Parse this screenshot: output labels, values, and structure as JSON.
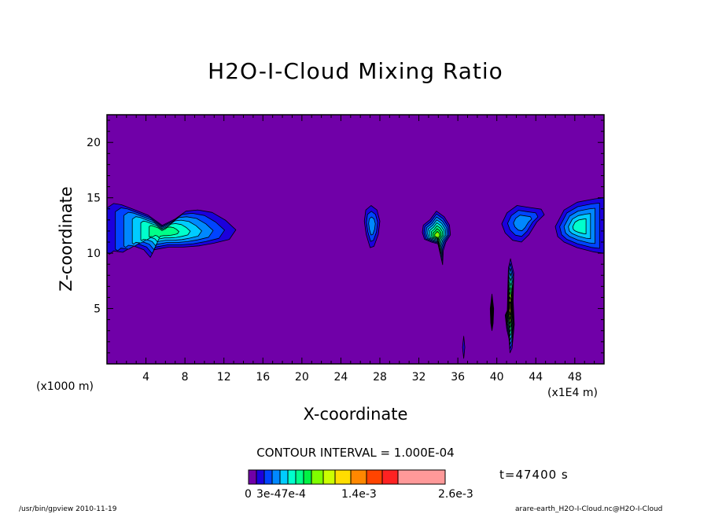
{
  "chart_data": {
    "type": "heatmap",
    "title": "H2O-I-Cloud Mixing Ratio",
    "xlabel": "X-coordinate",
    "ylabel": "Z-coordinate",
    "x_unit_label": "(x1000 m)",
    "y_unit_label": "(x1E4 m)",
    "xlim": [
      0,
      51
    ],
    "ylim": [
      0,
      22.5
    ],
    "x_ticks": [
      4,
      8,
      12,
      16,
      20,
      24,
      28,
      32,
      36,
      40,
      44,
      48
    ],
    "y_ticks": [
      5,
      10,
      15,
      20
    ],
    "contour_interval_text": "CONTOUR INTERVAL = 1.000E-04",
    "time_text": "t=47400 s",
    "background_color": "#7000a8",
    "colorbar": {
      "colors": [
        "#7000a8",
        "#1c00dc",
        "#0044ff",
        "#0088ff",
        "#00ccff",
        "#00ffcc",
        "#00ff88",
        "#00f244",
        "#80ff00",
        "#ccff00",
        "#ffdd00",
        "#ff8800",
        "#ff4400",
        "#ff2222",
        "#ff9999"
      ],
      "labels": [
        "0",
        "3e-47e-4",
        "1.4e-3",
        "2.6e-3"
      ]
    },
    "features": [
      {
        "name": "left cloud band",
        "x_range": [
          0,
          13.5
        ],
        "z_range": [
          9.5,
          15.3
        ],
        "max_level": 6
      },
      {
        "name": "small cloud x27",
        "x_range": [
          26.2,
          28.2
        ],
        "z_range": [
          10.3,
          14.3
        ],
        "max_level": 3
      },
      {
        "name": "cloud x33",
        "x_range": [
          32.2,
          35.4
        ],
        "z_range": [
          8.7,
          13.8
        ],
        "max_level": 8
      },
      {
        "name": "cloud x43",
        "x_range": [
          40.5,
          45
        ],
        "z_range": [
          11,
          14.3
        ],
        "max_level": 3
      },
      {
        "name": "right cloud band",
        "x_range": [
          46,
          51
        ],
        "z_range": [
          10,
          15
        ],
        "max_level": 5
      },
      {
        "name": "streak x39.5",
        "x_range": [
          39.2,
          39.8
        ],
        "z_range": [
          3,
          6.3
        ],
        "max_level": 8
      },
      {
        "name": "streak x41.5",
        "x_range": [
          40.8,
          41.9
        ],
        "z_range": [
          1,
          9.5
        ],
        "max_level": 10
      },
      {
        "name": "streak x36.6",
        "x_range": [
          36.4,
          36.8
        ],
        "z_range": [
          0.5,
          2.5
        ],
        "max_level": 1
      }
    ]
  },
  "footer": {
    "left": "/usr/bin/gpview  2010-11-19",
    "right": "arare-earth_H2O-I-Cloud.nc@H2O-I-Cloud"
  }
}
